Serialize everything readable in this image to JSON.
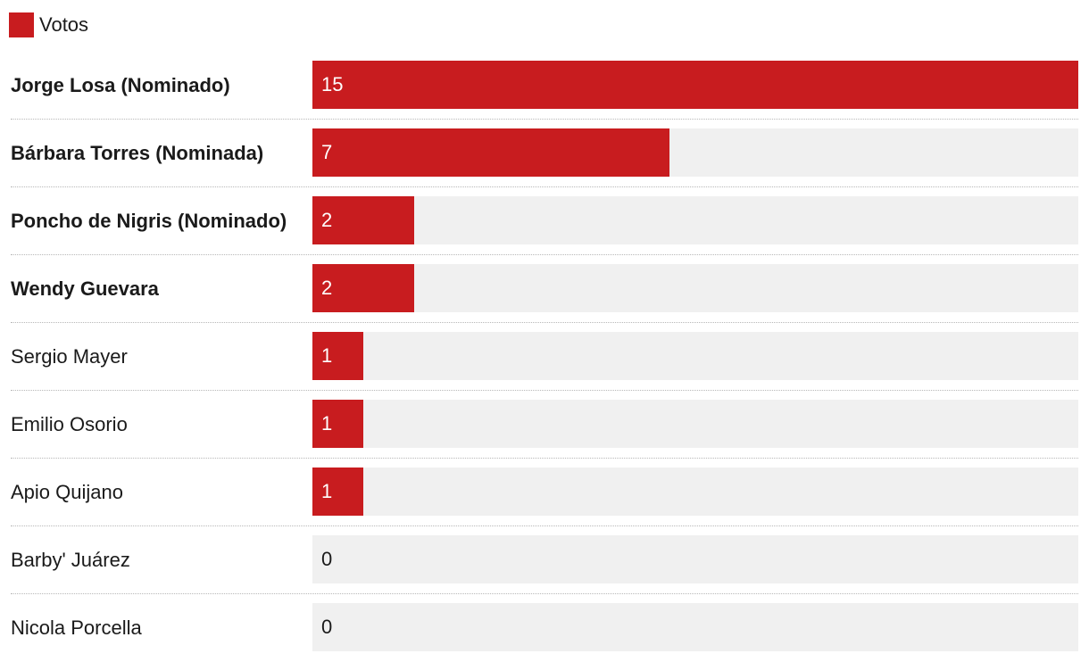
{
  "chart_data": {
    "type": "bar",
    "orientation": "horizontal",
    "legend": {
      "placement": "top-left",
      "entries": [
        {
          "name": "Votos",
          "color": "#c81c1f"
        }
      ]
    },
    "categories": [
      "Jorge Losa (Nominado)",
      "Bárbara Torres (Nominada)",
      "Poncho de Nigris (Nominado)",
      "Wendy Guevara",
      "Sergio Mayer",
      "Emilio Osorio",
      "Apio Quijano",
      "Barby' Juárez",
      "Nicola Porcella"
    ],
    "bold_categories": [
      true,
      true,
      true,
      true,
      false,
      false,
      false,
      false,
      false
    ],
    "series": [
      {
        "name": "Votos",
        "color": "#c81c1f",
        "values": [
          15,
          7,
          2,
          2,
          1,
          1,
          1,
          0,
          0
        ]
      }
    ],
    "xlim": [
      0,
      15
    ],
    "track_color": "#f0f0f0"
  }
}
